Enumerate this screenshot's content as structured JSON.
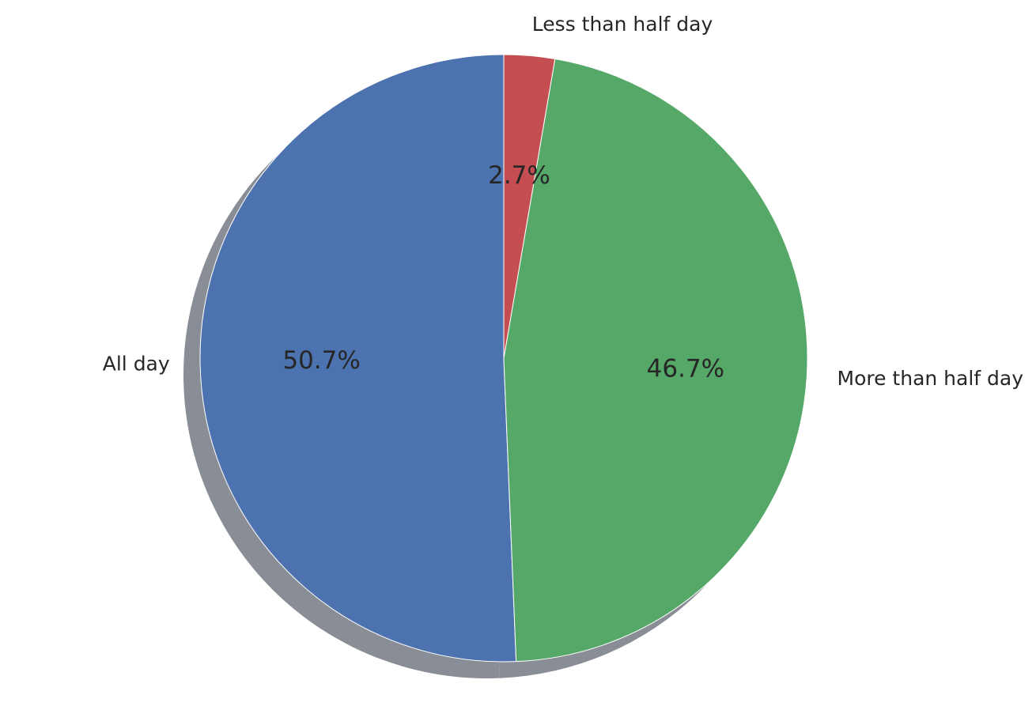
{
  "chart_data": {
    "type": "pie",
    "start_angle_deg": 90,
    "direction": "counterclockwise",
    "shadow": true,
    "slices": [
      {
        "label": "All day",
        "value": 50.7,
        "pct_text": "50.7%",
        "color": "#4c72b0"
      },
      {
        "label": "More than half day",
        "value": 46.7,
        "pct_text": "46.7%",
        "color": "#55a868"
      },
      {
        "label": "Less than half day",
        "value": 2.7,
        "pct_text": "2.7%",
        "color": "#c44e52"
      }
    ]
  },
  "colors": {
    "shadow": "#898e96",
    "edge": "#ffffff",
    "text": "#262626"
  }
}
